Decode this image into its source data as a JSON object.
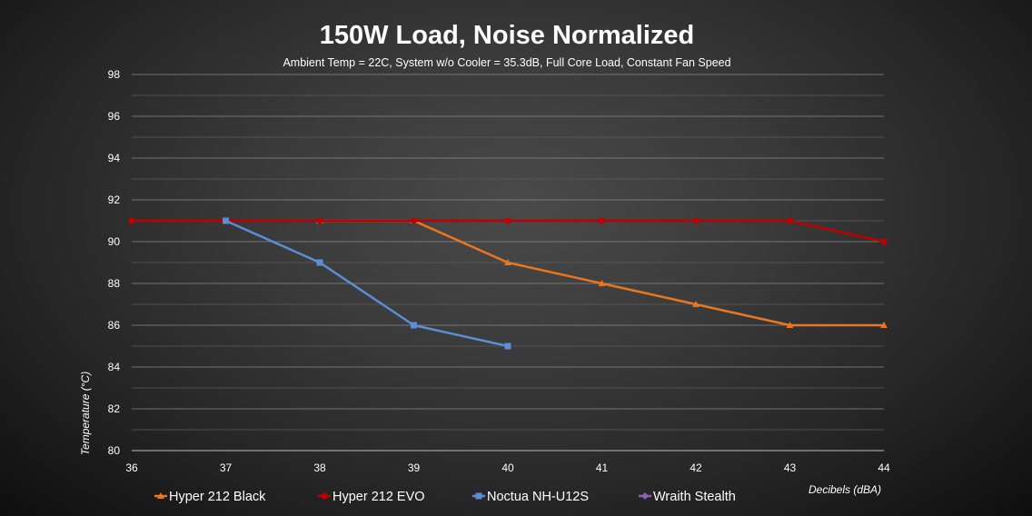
{
  "chart_data": {
    "type": "line",
    "title": "150W Load, Noise Normalized",
    "subtitle": "Ambient Temp = 22C, System w/o Cooler = 35.3dB, Full Core Load, Constant Fan Speed",
    "xlabel": "Decibels (dBA)",
    "ylabel": "Temperature (°C)",
    "xlim": [
      36,
      44
    ],
    "ylim": [
      80,
      98
    ],
    "xticks": [
      36,
      37,
      38,
      39,
      40,
      41,
      42,
      43,
      44
    ],
    "yticks": [
      80,
      82,
      84,
      86,
      88,
      90,
      92,
      94,
      96,
      98
    ],
    "grid": "horizontal",
    "legend_position": "bottom",
    "series": [
      {
        "name": "Hyper 212 Black",
        "color": "#E87722",
        "marker": "triangle",
        "x": [
          38,
          39,
          40,
          41,
          42,
          43,
          44
        ],
        "values": [
          91,
          91,
          89,
          88,
          87,
          86,
          86
        ]
      },
      {
        "name": "Hyper 212 EVO",
        "color": "#C00000",
        "marker": "circle",
        "x": [
          36,
          37,
          38,
          39,
          40,
          41,
          42,
          43,
          44
        ],
        "values": [
          91,
          91,
          91,
          91,
          91,
          91,
          91,
          91,
          90
        ]
      },
      {
        "name": "Noctua NH-U12S",
        "color": "#5B8ED6",
        "marker": "square",
        "x": [
          37,
          38,
          39,
          40
        ],
        "values": [
          91,
          89,
          86,
          85
        ]
      },
      {
        "name": "Wraith Stealth",
        "color": "#8E5FB8",
        "marker": "diamond",
        "x": [],
        "values": []
      }
    ]
  }
}
